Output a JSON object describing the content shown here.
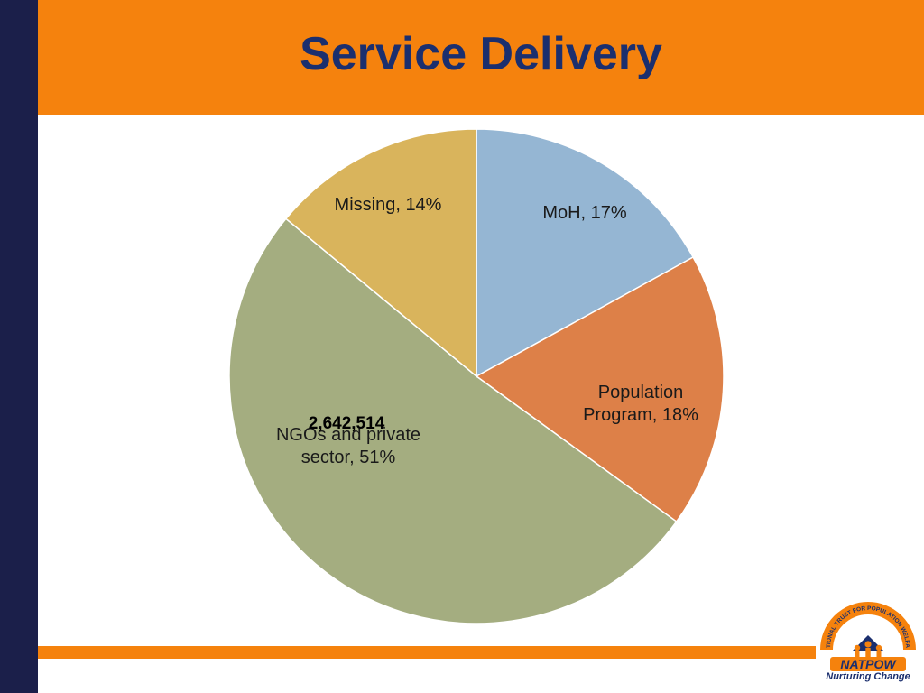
{
  "slide": {
    "title": "Service Delivery"
  },
  "logo": {
    "ring_text": "NATIONAL TRUST FOR POPULATION WELFARE",
    "wordmark": "NATPOW",
    "tagline": "Nurturing Change"
  },
  "colors": {
    "header": "#f5820d",
    "left_bar": "#1b1f4a",
    "title": "#1b2f6e"
  },
  "chart_data": {
    "type": "pie",
    "slices": [
      {
        "label": "MoH, 17%",
        "value": 17,
        "color": "#95b6d3"
      },
      {
        "label": "Population Program, 18%",
        "value": 18,
        "color": "#dd8048"
      },
      {
        "label": "NGOs and private sector, 51%",
        "value": 51,
        "color": "#a4ad80"
      },
      {
        "label": "Missing, 14%",
        "value": 14,
        "color": "#d9b45c"
      }
    ],
    "annotation": "2,642,514",
    "start_angle_deg": 0,
    "direction": "clockwise"
  }
}
